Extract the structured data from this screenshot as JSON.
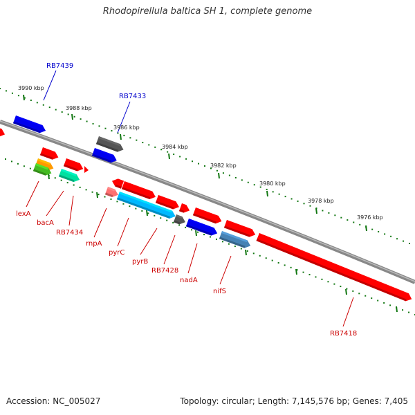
{
  "title": "Rhodopirellula baltica SH 1, complete genome",
  "footer": {
    "accession": "Accession: NC_005027",
    "summary": "Topology: circular; Length: 7,145,576 bp; Genes: 7,405"
  },
  "colors": {
    "gene_red": "#ff0000",
    "gene_blue": "#0000ee",
    "gene_gray": "#555555",
    "gene_cyan": "#00b8ff",
    "gene_steel": "#4682b4",
    "gene_aqua": "#00e0a0",
    "gene_orange": "#ff9900",
    "gene_green": "#44bb22",
    "gene_pink": "#ff7070",
    "tick_green": "#117711",
    "label_blue": "#0000cc",
    "label_red": "#cc0000"
  },
  "scale": {
    "ticks": [
      "3990 kbp",
      "3988 kbp",
      "3986 kbp",
      "3984 kbp",
      "3982 kbp",
      "3980 kbp",
      "3978 kbp",
      "3976 kbp"
    ]
  },
  "labels": {
    "top": [
      "RB7439",
      "RB7433"
    ],
    "bottom": [
      "lexA",
      "bacA",
      "RB7434",
      "rnpA",
      "pyrC",
      "pyrB",
      "RB7428",
      "nadA",
      "nifS",
      "RB7418"
    ]
  }
}
